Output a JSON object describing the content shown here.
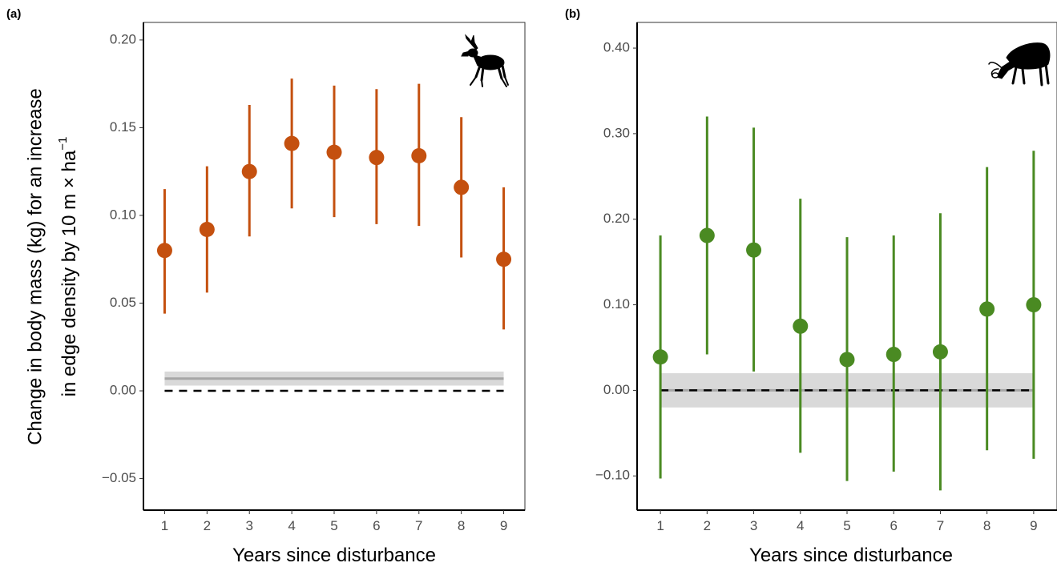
{
  "figure": {
    "ylabel_line1": "Change in body mass (kg) for an increase",
    "ylabel_line2_prefix": "in edge density by 10 m × ha",
    "ylabel_line2_sup": "−1"
  },
  "chart_data": [
    {
      "type": "scatter",
      "panel_label": "(a)",
      "animal_icon": "roe-deer-silhouette-icon",
      "xlabel": "Years since disturbance",
      "ylabel": "Change in body mass (kg) for an increase in edge density by 10 m × ha−1",
      "x": [
        1,
        2,
        3,
        4,
        5,
        6,
        7,
        8,
        9
      ],
      "xticks": [
        "1",
        "2",
        "3",
        "4",
        "5",
        "6",
        "7",
        "8",
        "9"
      ],
      "xlim": [
        0.5,
        9.5
      ],
      "ylim": [
        -0.068,
        0.21
      ],
      "yticks": [
        -0.05,
        0.0,
        0.05,
        0.1,
        0.15,
        0.2
      ],
      "ytick_labels": [
        "−0.05",
        "0.00",
        "0.05",
        "0.10",
        "0.15",
        "0.20"
      ],
      "series": [
        {
          "estimate": [
            0.08,
            0.092,
            0.125,
            0.141,
            0.136,
            0.133,
            0.134,
            0.116,
            0.075
          ],
          "lower": [
            0.044,
            0.056,
            0.088,
            0.104,
            0.099,
            0.095,
            0.094,
            0.076,
            0.035
          ],
          "upper": [
            0.115,
            0.128,
            0.163,
            0.178,
            0.174,
            0.172,
            0.175,
            0.156,
            0.116
          ],
          "color": "#c4500f"
        }
      ],
      "reference_line": {
        "y": 0.0,
        "style": "dashed",
        "color": "#000000"
      },
      "baseline_band": {
        "estimate": 0.007,
        "lower": 0.003,
        "upper": 0.011,
        "line_color": "#a6a6a6",
        "fill_color": "#d9d9d9"
      },
      "grid": false
    },
    {
      "type": "scatter",
      "panel_label": "(b)",
      "animal_icon": "red-deer-grazing-silhouette-icon",
      "xlabel": "Years since disturbance",
      "ylabel": "",
      "x": [
        1,
        2,
        3,
        4,
        5,
        6,
        7,
        8,
        9
      ],
      "xticks": [
        "1",
        "2",
        "3",
        "4",
        "5",
        "6",
        "7",
        "8",
        "9"
      ],
      "xlim": [
        0.5,
        9.5
      ],
      "ylim": [
        -0.14,
        0.43
      ],
      "yticks": [
        -0.1,
        0.0,
        0.1,
        0.2,
        0.3,
        0.4
      ],
      "ytick_labels": [
        "−0.10",
        "0.00",
        "0.10",
        "0.20",
        "0.30",
        "0.40"
      ],
      "series": [
        {
          "estimate": [
            0.039,
            0.181,
            0.164,
            0.075,
            0.036,
            0.042,
            0.045,
            0.095,
            0.1
          ],
          "lower": [
            -0.103,
            0.042,
            0.022,
            -0.073,
            -0.106,
            -0.095,
            -0.117,
            -0.07,
            -0.08
          ],
          "upper": [
            0.181,
            0.32,
            0.307,
            0.224,
            0.179,
            0.181,
            0.207,
            0.261,
            0.28
          ],
          "color": "#4a8a22"
        }
      ],
      "reference_line": {
        "y": 0.0,
        "style": "dashed",
        "color": "#000000"
      },
      "baseline_band": {
        "estimate": 0.0,
        "lower": -0.02,
        "upper": 0.02,
        "line_color": "#a6a6a6",
        "fill_color": "#d9d9d9"
      },
      "grid": false
    }
  ]
}
